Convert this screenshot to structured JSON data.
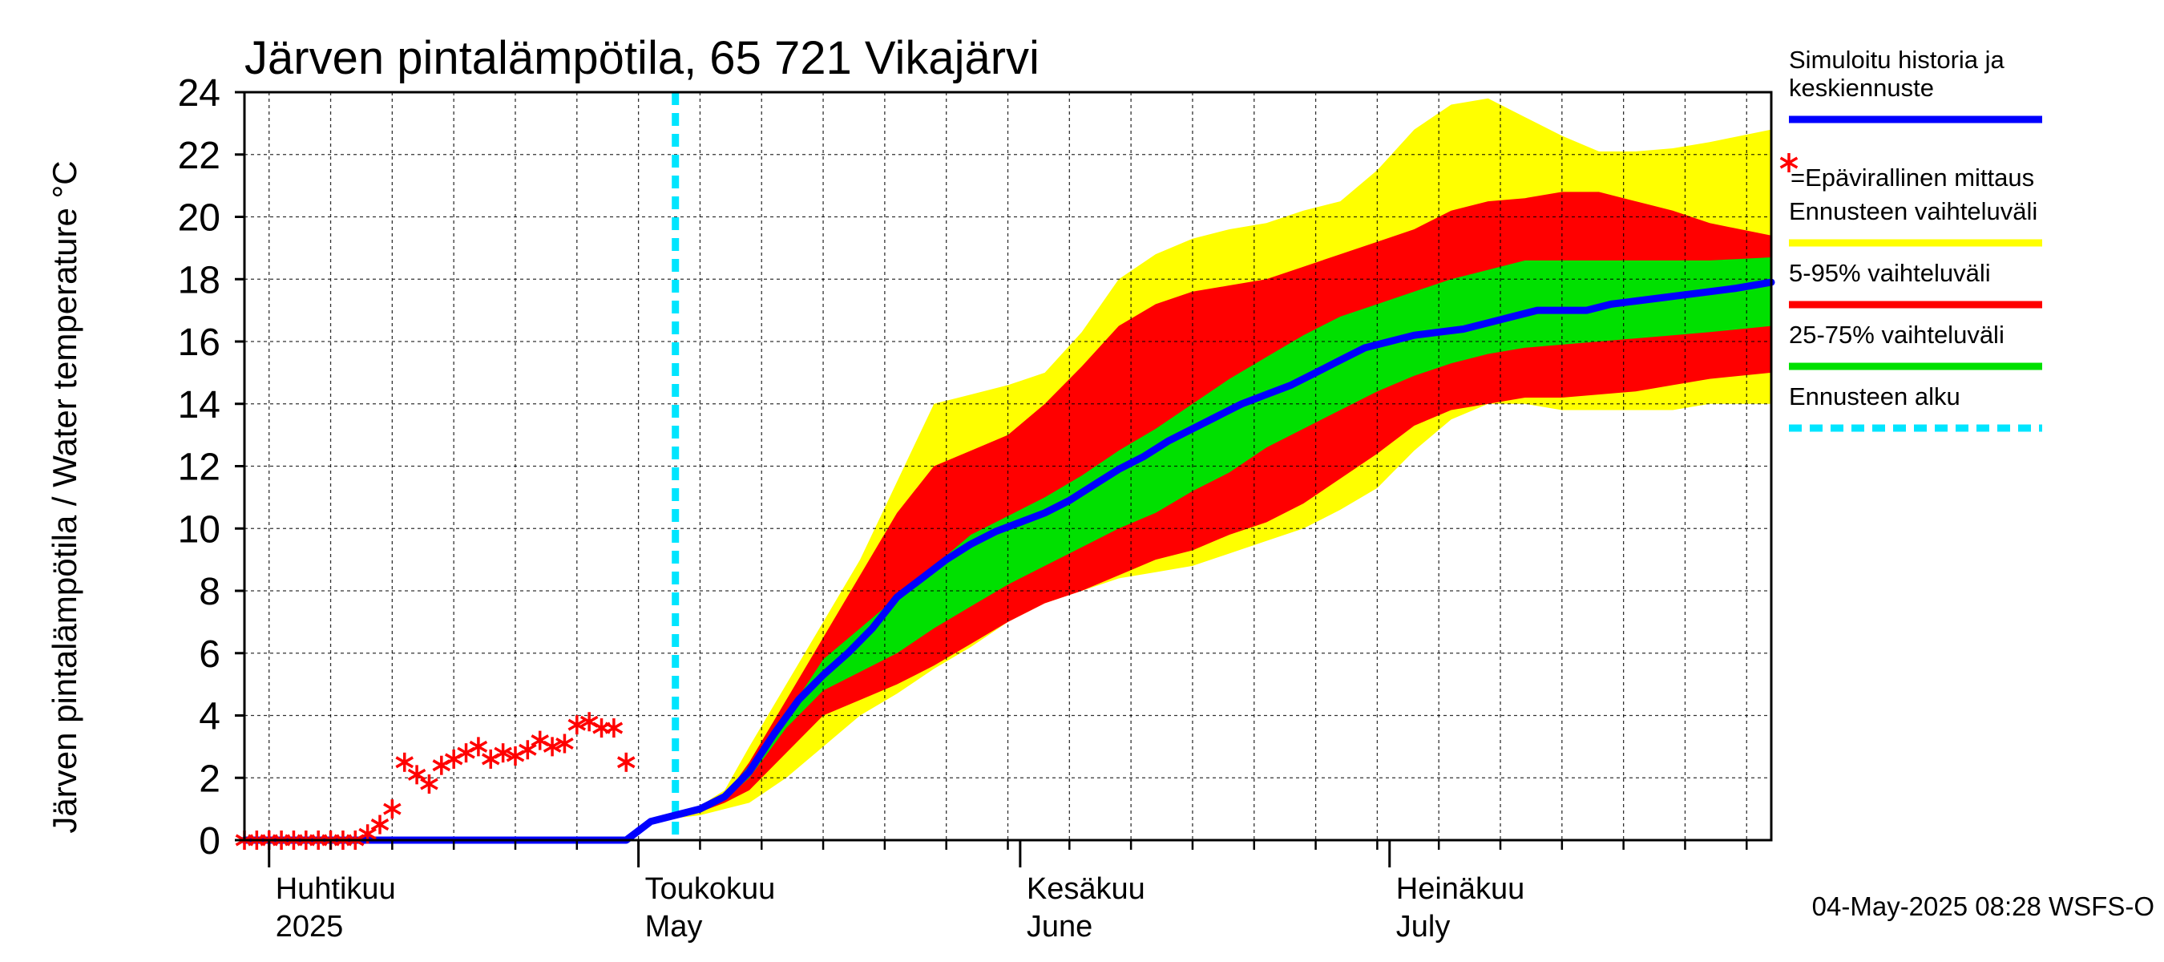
{
  "chart_data": {
    "type": "area",
    "title": "Järven pintalämpötila, 65 721 Vikajärvi",
    "ylabel": "Järven pintalämpötila / Water temperature °C",
    "xlabel": "",
    "ylim": [
      0,
      24
    ],
    "yticks": [
      0,
      2,
      4,
      6,
      8,
      10,
      12,
      14,
      16,
      18,
      20,
      22,
      24
    ],
    "x_range": [
      "2025-03-30",
      "2025-08-01"
    ],
    "grid": true,
    "legend_position": "right",
    "month_labels": [
      {
        "date": "2025-04-01",
        "line1": "Huhtikuu",
        "line2": "2025"
      },
      {
        "date": "2025-05-01",
        "line1": "Toukokuu",
        "line2": "May"
      },
      {
        "date": "2025-06-01",
        "line1": "Kesäkuu",
        "line2": "June"
      },
      {
        "date": "2025-07-01",
        "line1": "Heinäkuu",
        "line2": "July"
      }
    ],
    "forecast_start": "2025-05-04",
    "timestamp": "04-May-2025 08:28 WSFS-O",
    "legend": [
      {
        "label": "Simuloitu historia ja\nkeskiennuste",
        "color": "#0000ff",
        "style": "line"
      },
      {
        "label": "=Epävirallinen mittaus",
        "color": "#ff0000",
        "style": "marker"
      },
      {
        "label": "Ennusteen vaihteluväli",
        "color": "#ffff00",
        "style": "line"
      },
      {
        "label": "5-95% vaihteluväli",
        "color": "#ff0000",
        "style": "line"
      },
      {
        "label": "25-75% vaihteluväli",
        "color": "#00e000",
        "style": "line"
      },
      {
        "label": "Ennusteen alku",
        "color": "#00e5ff",
        "style": "dashed"
      }
    ],
    "series": [
      {
        "name": "Simuloitu historia ja keskiennuste",
        "color": "#0000ff",
        "x": [
          "2025-03-30",
          "2025-04-10",
          "2025-04-20",
          "2025-04-30",
          "2025-05-02",
          "2025-05-04",
          "2025-05-06",
          "2025-05-08",
          "2025-05-10",
          "2025-05-12",
          "2025-05-14",
          "2025-05-16",
          "2025-05-18",
          "2025-05-20",
          "2025-05-22",
          "2025-05-24",
          "2025-05-26",
          "2025-05-28",
          "2025-05-30",
          "2025-06-01",
          "2025-06-03",
          "2025-06-05",
          "2025-06-07",
          "2025-06-09",
          "2025-06-11",
          "2025-06-13",
          "2025-06-15",
          "2025-06-17",
          "2025-06-19",
          "2025-06-21",
          "2025-06-23",
          "2025-06-25",
          "2025-06-27",
          "2025-06-29",
          "2025-07-01",
          "2025-07-03",
          "2025-07-05",
          "2025-07-07",
          "2025-07-09",
          "2025-07-11",
          "2025-07-13",
          "2025-07-15",
          "2025-07-17",
          "2025-07-19",
          "2025-07-21",
          "2025-07-23",
          "2025-07-25",
          "2025-07-27",
          "2025-07-29",
          "2025-08-01"
        ],
        "values": [
          0,
          0,
          0,
          0,
          0.6,
          0.8,
          1.0,
          1.4,
          2.2,
          3.4,
          4.5,
          5.3,
          6.0,
          6.8,
          7.8,
          8.4,
          9.0,
          9.5,
          9.9,
          10.2,
          10.5,
          10.9,
          11.4,
          11.9,
          12.3,
          12.8,
          13.2,
          13.6,
          14.0,
          14.3,
          14.6,
          15.0,
          15.4,
          15.8,
          16.0,
          16.2,
          16.3,
          16.4,
          16.6,
          16.8,
          17.0,
          17.0,
          17.0,
          17.2,
          17.3,
          17.4,
          17.5,
          17.6,
          17.7,
          17.9
        ]
      }
    ],
    "bands": [
      {
        "name": "Ennusteen vaihteluväli",
        "color": "#ffff00",
        "x": [
          "2025-05-04",
          "2025-05-06",
          "2025-05-08",
          "2025-05-10",
          "2025-05-13",
          "2025-05-16",
          "2025-05-19",
          "2025-05-22",
          "2025-05-25",
          "2025-05-28",
          "2025-05-31",
          "2025-06-03",
          "2025-06-06",
          "2025-06-09",
          "2025-06-12",
          "2025-06-15",
          "2025-06-18",
          "2025-06-21",
          "2025-06-24",
          "2025-06-27",
          "2025-06-30",
          "2025-07-03",
          "2025-07-06",
          "2025-07-09",
          "2025-07-12",
          "2025-07-15",
          "2025-07-18",
          "2025-07-21",
          "2025-07-24",
          "2025-07-27",
          "2025-08-01"
        ],
        "low": [
          0.7,
          0.8,
          1.0,
          1.2,
          2.0,
          3.0,
          4.0,
          4.7,
          5.5,
          6.2,
          7.0,
          7.6,
          8.0,
          8.4,
          8.6,
          8.8,
          9.2,
          9.6,
          10.0,
          10.6,
          11.3,
          12.5,
          13.5,
          14.0,
          14.0,
          13.8,
          13.8,
          13.8,
          13.8,
          14.0,
          14.0
        ],
        "high": [
          0.9,
          1.1,
          1.6,
          3.0,
          5.0,
          7.0,
          9.0,
          11.5,
          14.0,
          14.3,
          14.6,
          15.0,
          16.3,
          18.0,
          18.8,
          19.3,
          19.6,
          19.8,
          20.2,
          20.5,
          21.5,
          22.8,
          23.6,
          23.8,
          23.2,
          22.6,
          22.1,
          22.1,
          22.2,
          22.4,
          22.8
        ]
      },
      {
        "name": "5-95% vaihteluväli",
        "color": "#ff0000",
        "x": [
          "2025-05-04",
          "2025-05-06",
          "2025-05-08",
          "2025-05-10",
          "2025-05-13",
          "2025-05-16",
          "2025-05-19",
          "2025-05-22",
          "2025-05-25",
          "2025-05-28",
          "2025-05-31",
          "2025-06-03",
          "2025-06-06",
          "2025-06-09",
          "2025-06-12",
          "2025-06-15",
          "2025-06-18",
          "2025-06-21",
          "2025-06-24",
          "2025-06-27",
          "2025-06-30",
          "2025-07-03",
          "2025-07-06",
          "2025-07-09",
          "2025-07-12",
          "2025-07-15",
          "2025-07-18",
          "2025-07-21",
          "2025-07-24",
          "2025-07-27",
          "2025-08-01"
        ],
        "low": [
          0.8,
          0.9,
          1.2,
          1.6,
          2.8,
          4.0,
          4.5,
          5.0,
          5.6,
          6.3,
          7.0,
          7.6,
          8.0,
          8.5,
          9.0,
          9.3,
          9.8,
          10.2,
          10.8,
          11.6,
          12.4,
          13.3,
          13.8,
          14.0,
          14.2,
          14.2,
          14.3,
          14.4,
          14.6,
          14.8,
          15.0
        ],
        "high": [
          0.9,
          1.0,
          1.4,
          2.5,
          4.5,
          6.5,
          8.5,
          10.5,
          12.0,
          12.5,
          13.0,
          14.0,
          15.2,
          16.5,
          17.2,
          17.6,
          17.8,
          18.0,
          18.4,
          18.8,
          19.2,
          19.6,
          20.2,
          20.5,
          20.6,
          20.8,
          20.8,
          20.5,
          20.2,
          19.8,
          19.4
        ]
      },
      {
        "name": "25-75% vaihteluväli",
        "color": "#00e000",
        "x": [
          "2025-05-04",
          "2025-05-06",
          "2025-05-08",
          "2025-05-10",
          "2025-05-13",
          "2025-05-16",
          "2025-05-19",
          "2025-05-22",
          "2025-05-25",
          "2025-05-28",
          "2025-05-31",
          "2025-06-03",
          "2025-06-06",
          "2025-06-09",
          "2025-06-12",
          "2025-06-15",
          "2025-06-18",
          "2025-06-21",
          "2025-06-24",
          "2025-06-27",
          "2025-06-30",
          "2025-07-03",
          "2025-07-06",
          "2025-07-09",
          "2025-07-12",
          "2025-07-15",
          "2025-07-18",
          "2025-07-21",
          "2025-07-24",
          "2025-07-27",
          "2025-08-01"
        ],
        "low": [
          0.8,
          0.9,
          1.3,
          2.0,
          3.6,
          4.8,
          5.4,
          6.0,
          6.8,
          7.5,
          8.2,
          8.8,
          9.4,
          10.0,
          10.5,
          11.2,
          11.8,
          12.6,
          13.2,
          13.8,
          14.4,
          14.9,
          15.3,
          15.6,
          15.8,
          15.9,
          16.0,
          16.1,
          16.2,
          16.3,
          16.5
        ],
        "high": [
          0.9,
          1.0,
          1.5,
          2.4,
          4.0,
          5.8,
          6.8,
          7.8,
          8.8,
          9.8,
          10.4,
          11.0,
          11.7,
          12.5,
          13.2,
          14.0,
          14.8,
          15.5,
          16.2,
          16.8,
          17.2,
          17.6,
          18.0,
          18.3,
          18.6,
          18.6,
          18.6,
          18.6,
          18.6,
          18.6,
          18.7
        ]
      }
    ],
    "measurements": {
      "name": "Epävirallinen mittaus",
      "color": "#ff0000",
      "x": [
        "2025-03-30",
        "2025-03-31",
        "2025-04-01",
        "2025-04-02",
        "2025-04-03",
        "2025-04-04",
        "2025-04-05",
        "2025-04-06",
        "2025-04-07",
        "2025-04-08",
        "2025-04-09",
        "2025-04-10",
        "2025-04-11",
        "2025-04-12",
        "2025-04-13",
        "2025-04-14",
        "2025-04-15",
        "2025-04-16",
        "2025-04-17",
        "2025-04-18",
        "2025-04-19",
        "2025-04-20",
        "2025-04-21",
        "2025-04-22",
        "2025-04-23",
        "2025-04-24",
        "2025-04-25",
        "2025-04-26",
        "2025-04-27",
        "2025-04-28",
        "2025-04-29",
        "2025-04-30",
        "2025-05-02"
      ],
      "values": [
        0,
        0,
        0,
        0,
        0,
        0,
        0,
        0,
        0,
        0,
        0.2,
        0.5,
        1.0,
        2.5,
        2.1,
        1.8,
        2.4,
        2.6,
        2.8,
        3.0,
        2.6,
        2.8,
        2.7,
        2.9,
        3.2,
        3.0,
        3.1,
        3.7,
        3.8,
        3.6,
        3.6,
        2.5,
        null
      ]
    }
  }
}
